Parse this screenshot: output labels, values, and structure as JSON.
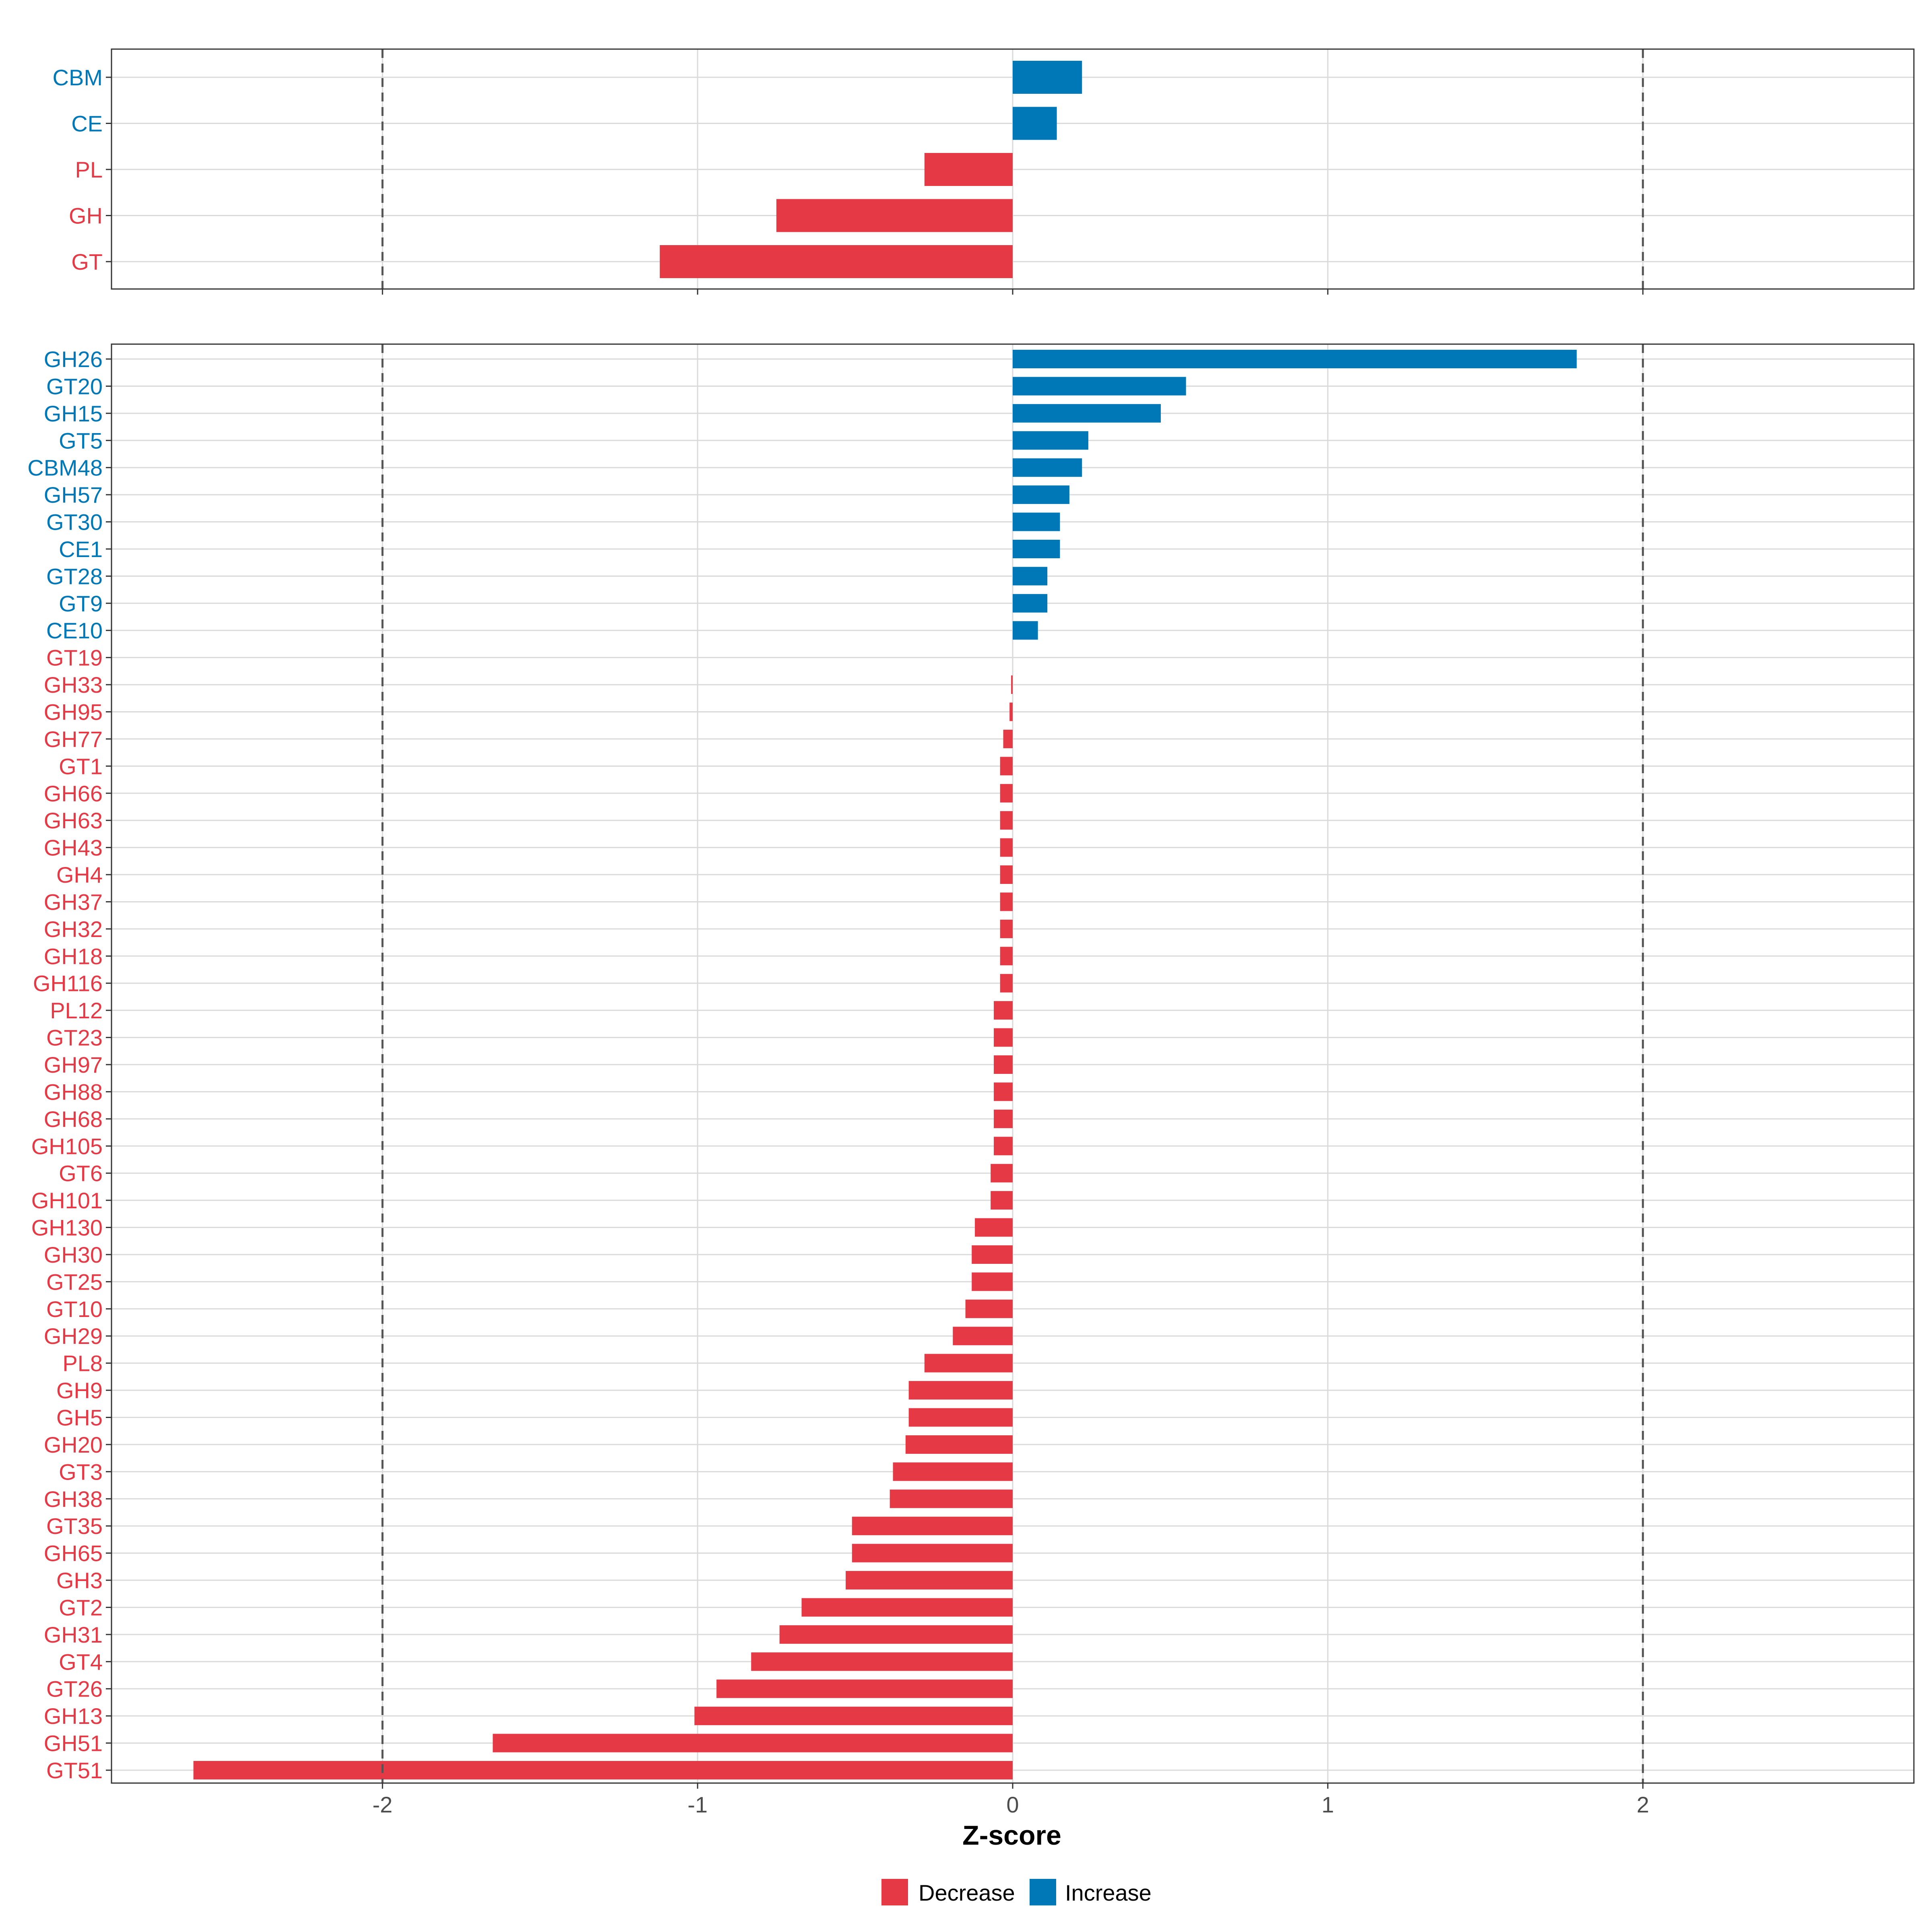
{
  "chart_data": {
    "type": "bar",
    "orientation": "horizontal",
    "xlabel": "Z-score",
    "xlim": [
      -2.86,
      2.86
    ],
    "xticks": [
      -2,
      -1,
      0,
      1,
      2
    ],
    "xtick_labels": [
      "-2",
      "-1",
      "0",
      "1",
      "2"
    ],
    "reference_lines": [
      -2,
      2
    ],
    "grid": true,
    "colors": {
      "Decrease": "#e63946",
      "Increase": "#0077b6"
    },
    "legend": {
      "position": "bottom",
      "items": [
        "Decrease",
        "Increase"
      ]
    },
    "panels": [
      {
        "name": "class",
        "categories": [
          "CBM",
          "CE",
          "PL",
          "GH",
          "GT"
        ],
        "values": [
          0.22,
          0.14,
          -0.28,
          -0.75,
          -1.12
        ],
        "groups": [
          "Increase",
          "Increase",
          "Decrease",
          "Decrease",
          "Decrease"
        ]
      },
      {
        "name": "family",
        "categories": [
          "GH26",
          "GT20",
          "GH15",
          "GT5",
          "CBM48",
          "GH57",
          "GT30",
          "CE1",
          "GT28",
          "GT9",
          "CE10",
          "GT19",
          "GH33",
          "GH95",
          "GH77",
          "GT1",
          "GH66",
          "GH63",
          "GH43",
          "GH4",
          "GH37",
          "GH32",
          "GH18",
          "GH116",
          "PL12",
          "GT23",
          "GH97",
          "GH88",
          "GH68",
          "GH105",
          "GT6",
          "GH101",
          "GH130",
          "GH30",
          "GT25",
          "GT10",
          "GH29",
          "PL8",
          "GH9",
          "GH5",
          "GH20",
          "GT3",
          "GH38",
          "GT35",
          "GH65",
          "GH3",
          "GT2",
          "GH31",
          "GT4",
          "GT26",
          "GH13",
          "GH51",
          "GT51"
        ],
        "values": [
          1.79,
          0.55,
          0.47,
          0.24,
          0.22,
          0.18,
          0.15,
          0.15,
          0.11,
          0.11,
          0.08,
          0.0,
          -0.005,
          -0.01,
          -0.03,
          -0.04,
          -0.04,
          -0.04,
          -0.04,
          -0.04,
          -0.04,
          -0.04,
          -0.04,
          -0.04,
          -0.06,
          -0.06,
          -0.06,
          -0.06,
          -0.06,
          -0.06,
          -0.07,
          -0.07,
          -0.12,
          -0.13,
          -0.13,
          -0.15,
          -0.19,
          -0.28,
          -0.33,
          -0.33,
          -0.34,
          -0.38,
          -0.39,
          -0.51,
          -0.51,
          -0.53,
          -0.67,
          -0.74,
          -0.83,
          -0.94,
          -1.01,
          -1.65,
          -2.6
        ],
        "groups": [
          "Increase",
          "Increase",
          "Increase",
          "Increase",
          "Increase",
          "Increase",
          "Increase",
          "Increase",
          "Increase",
          "Increase",
          "Increase",
          "Decrease",
          "Decrease",
          "Decrease",
          "Decrease",
          "Decrease",
          "Decrease",
          "Decrease",
          "Decrease",
          "Decrease",
          "Decrease",
          "Decrease",
          "Decrease",
          "Decrease",
          "Decrease",
          "Decrease",
          "Decrease",
          "Decrease",
          "Decrease",
          "Decrease",
          "Decrease",
          "Decrease",
          "Decrease",
          "Decrease",
          "Decrease",
          "Decrease",
          "Decrease",
          "Decrease",
          "Decrease",
          "Decrease",
          "Decrease",
          "Decrease",
          "Decrease",
          "Decrease",
          "Decrease",
          "Decrease",
          "Decrease",
          "Decrease",
          "Decrease",
          "Decrease",
          "Decrease",
          "Decrease",
          "Decrease"
        ]
      }
    ]
  }
}
